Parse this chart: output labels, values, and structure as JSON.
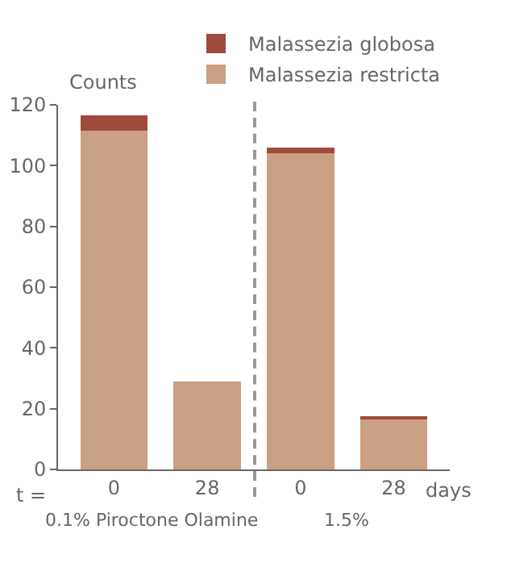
{
  "chart_data": {
    "type": "bar",
    "stacked": true,
    "ylabel": "Counts",
    "categories": [
      "0",
      "28",
      "0",
      "28"
    ],
    "series": [
      {
        "name": "Malassezia restricta",
        "color": "#c9a081",
        "values": [
          111.5,
          29,
          104,
          16.5
        ]
      },
      {
        "name": "Malassezia globosa",
        "color": "#a04a3c",
        "values": [
          5,
          0,
          2,
          1
        ]
      }
    ],
    "ylim": [
      0,
      120
    ],
    "yticks": [
      0,
      20,
      40,
      60,
      80,
      100,
      120
    ],
    "grid": false,
    "legend": "top right",
    "annotations": [
      "t =",
      "days",
      "0.1% Piroctone Olamine",
      "1.5%"
    ]
  }
}
